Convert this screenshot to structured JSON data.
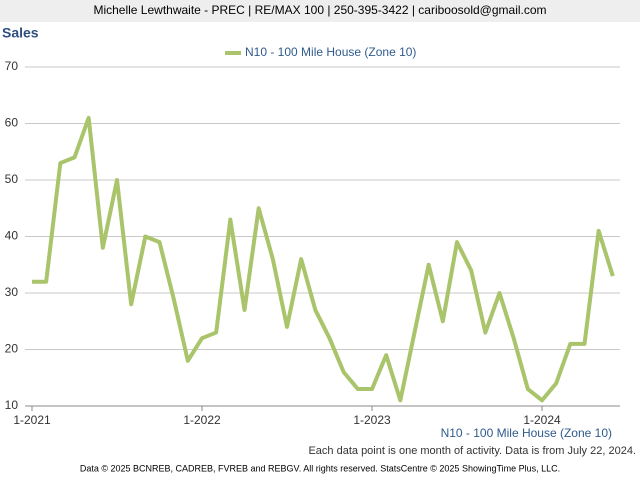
{
  "header": "Michelle Lewthwaite - PREC | RE/MAX 100 | 250-395-3422 | cariboosold@gmail.com",
  "footer": "Data © 2025 BCNREB, CADREB, FVREB and REBGV. All rights reserved. StatsCentre © 2025 ShowingTime Plus, LLC.",
  "chart_data": {
    "type": "line",
    "title": "Sales",
    "x_label": "N10 - 100 Mile House (Zone 10)",
    "note": "Each data point is one month of activity. Data is from July 22, 2024.",
    "categories": [
      "1-2021",
      null,
      null,
      null,
      null,
      null,
      null,
      null,
      null,
      null,
      null,
      null,
      "1-2022",
      null,
      null,
      null,
      null,
      null,
      null,
      null,
      null,
      null,
      null,
      null,
      "1-2023",
      null,
      null,
      null,
      null,
      null,
      null,
      null,
      null,
      null,
      null,
      null,
      "1-2024",
      null,
      null,
      null,
      null,
      null
    ],
    "series": [
      {
        "name": "N10 - 100 Mile House (Zone 10)",
        "color": "#a9c46a",
        "values": [
          32,
          32,
          53,
          54,
          61,
          38,
          50,
          28,
          40,
          39,
          29,
          18,
          22,
          23,
          43,
          27,
          45,
          36,
          24,
          36,
          27,
          22,
          16,
          13,
          13,
          19,
          11,
          23,
          35,
          25,
          39,
          34,
          23,
          30,
          22,
          13,
          11,
          14,
          21,
          21,
          41,
          33
        ]
      }
    ],
    "ylim": [
      10,
      70
    ],
    "yticks": [
      10,
      20,
      30,
      40,
      50,
      60,
      70
    ],
    "grid": true,
    "legend": "top"
  }
}
